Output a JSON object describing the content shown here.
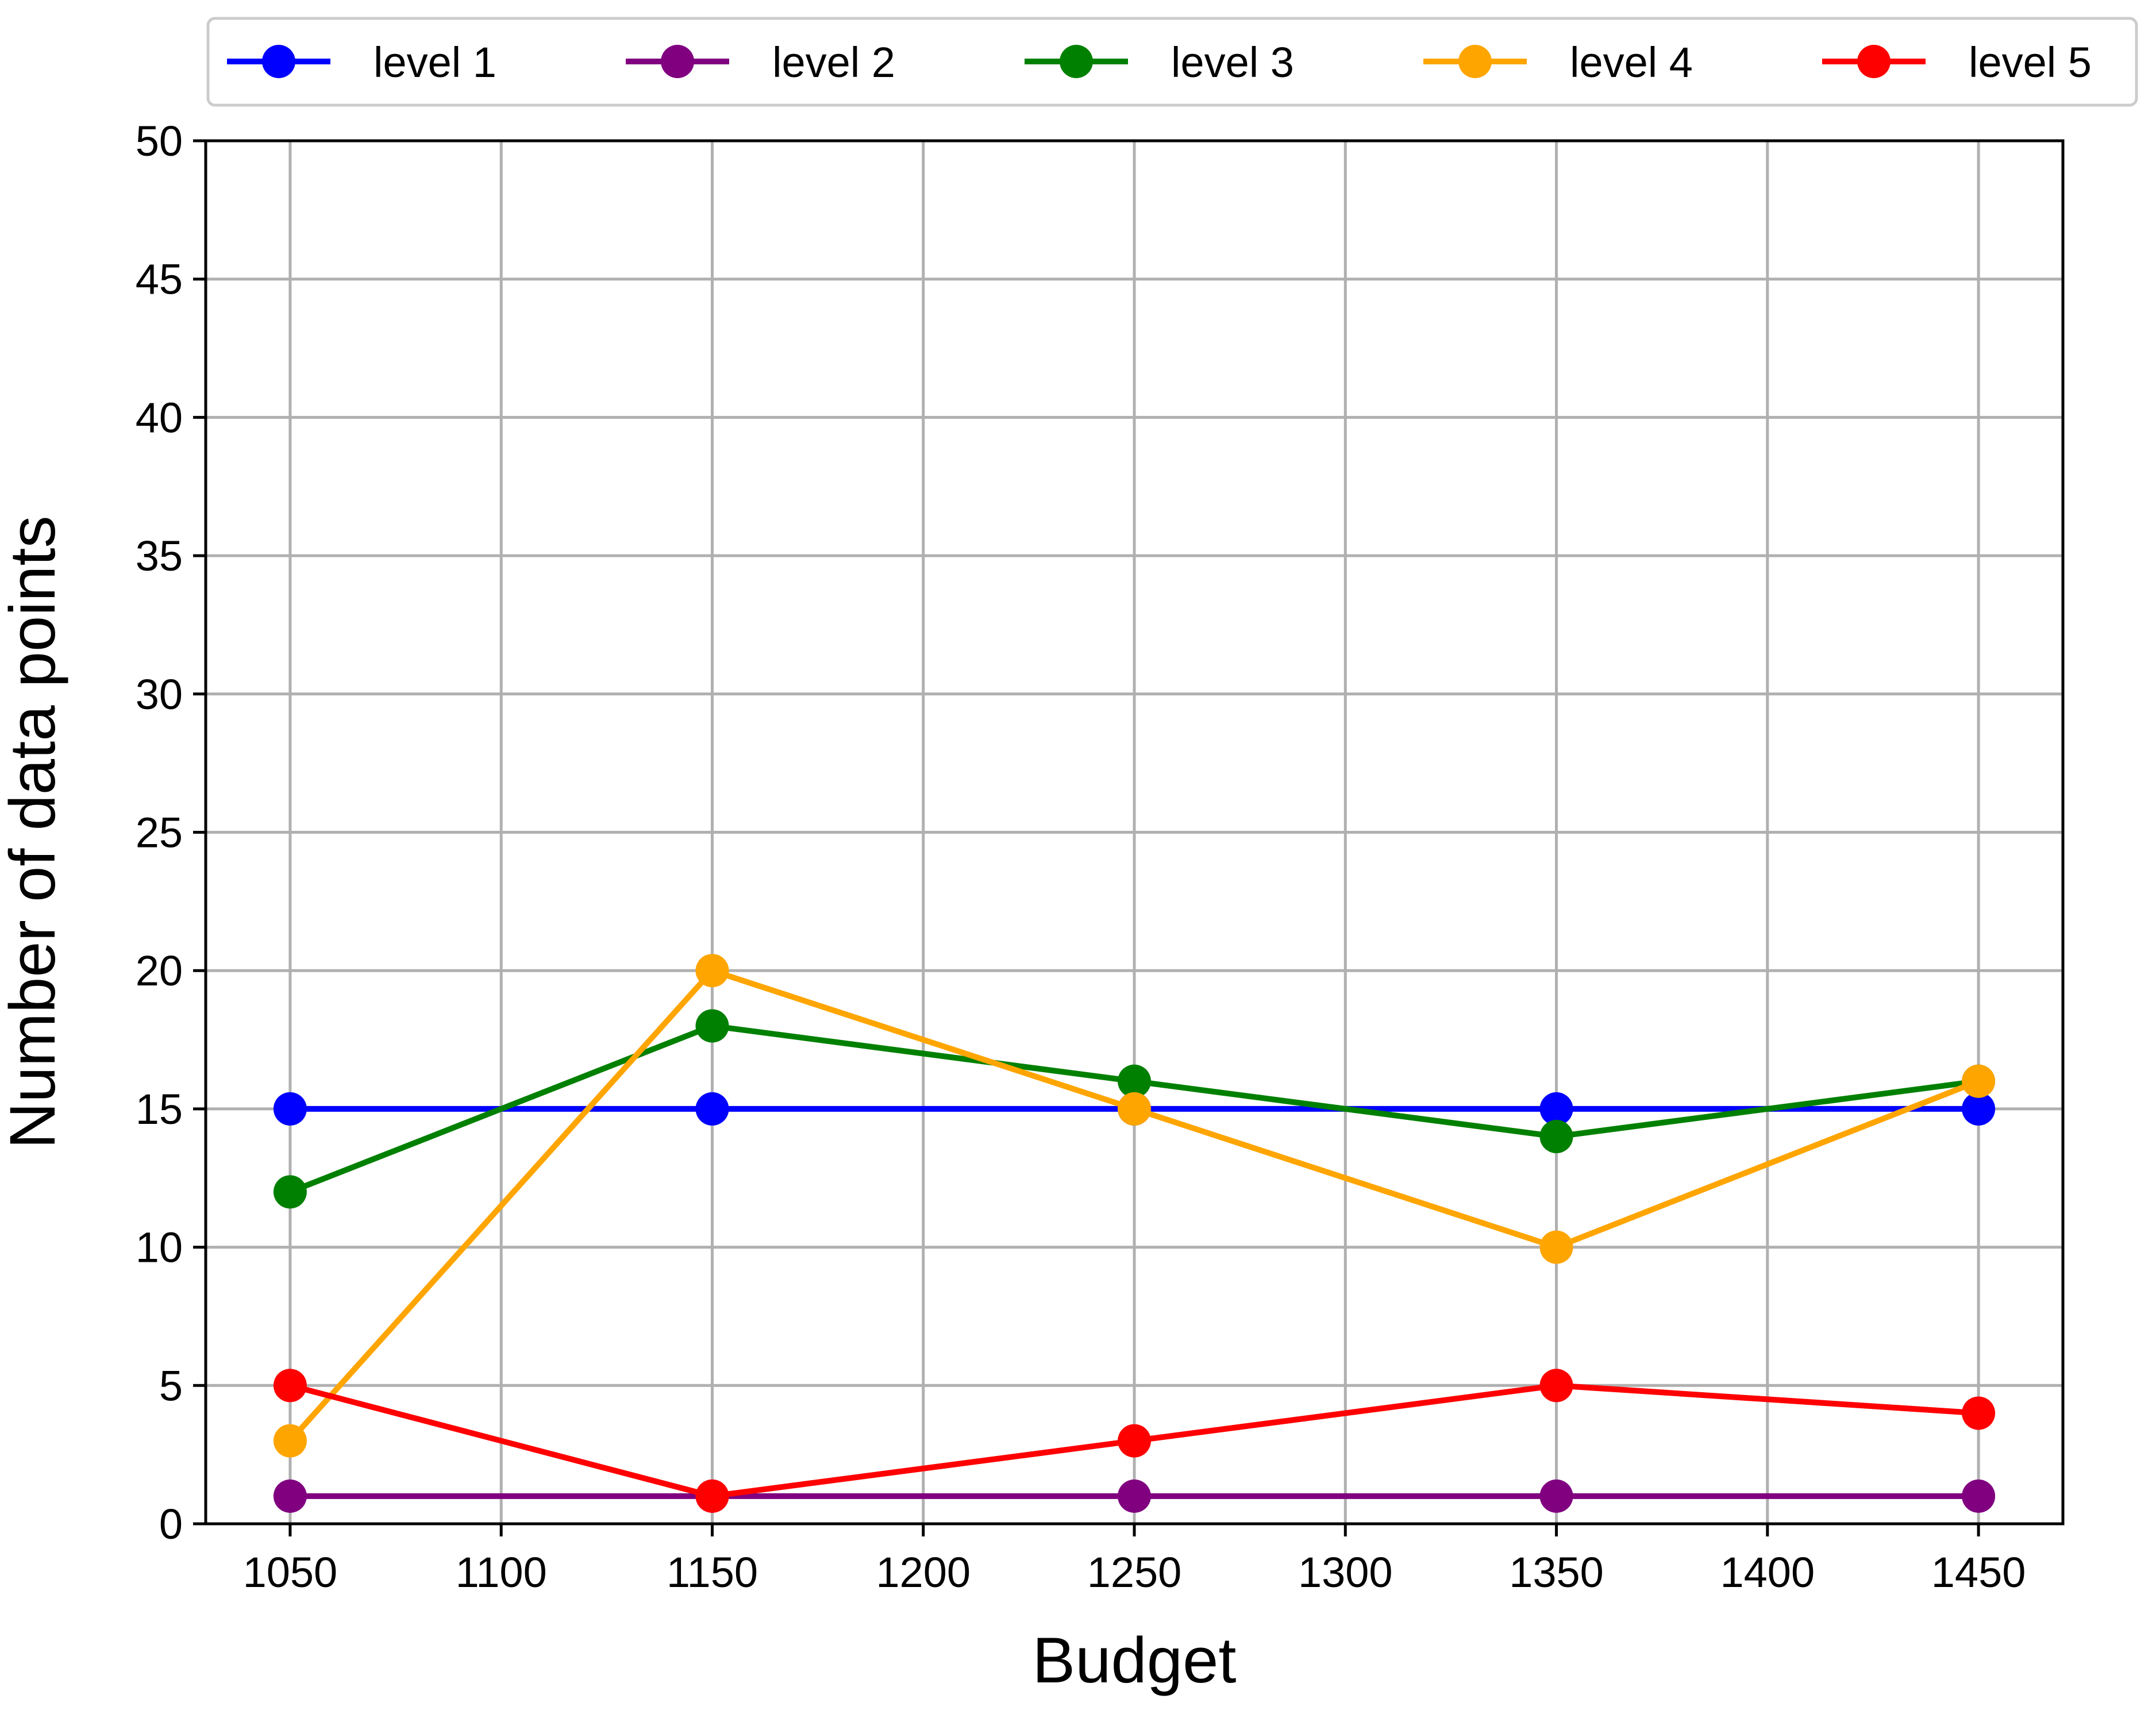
{
  "chart_data": {
    "type": "line",
    "xlabel": "Budget",
    "ylabel": "Number of data points",
    "x": [
      1050,
      1150,
      1250,
      1350,
      1450
    ],
    "xlim": [
      1030,
      1470
    ],
    "ylim": [
      0,
      50
    ],
    "xticks": [
      "1050",
      "1100",
      "1150",
      "1200",
      "1250",
      "1300",
      "1350",
      "1400",
      "1450"
    ],
    "yticks": [
      "0",
      "5",
      "10",
      "15",
      "20",
      "25",
      "30",
      "35",
      "40",
      "45",
      "50"
    ],
    "grid": true,
    "legend_position": "top",
    "series": [
      {
        "name": "level 1",
        "color": "#0000ff",
        "values": [
          15,
          15,
          15,
          15,
          15
        ]
      },
      {
        "name": "level 2",
        "color": "#800080",
        "values": [
          1,
          1,
          1,
          1,
          1
        ]
      },
      {
        "name": "level 3",
        "color": "#008000",
        "values": [
          12,
          18,
          16,
          14,
          16
        ]
      },
      {
        "name": "level 4",
        "color": "#ffa500",
        "values": [
          3,
          20,
          15,
          10,
          16
        ]
      },
      {
        "name": "level 5",
        "color": "#ff0000",
        "values": [
          5,
          1,
          3,
          5,
          4
        ]
      }
    ]
  }
}
